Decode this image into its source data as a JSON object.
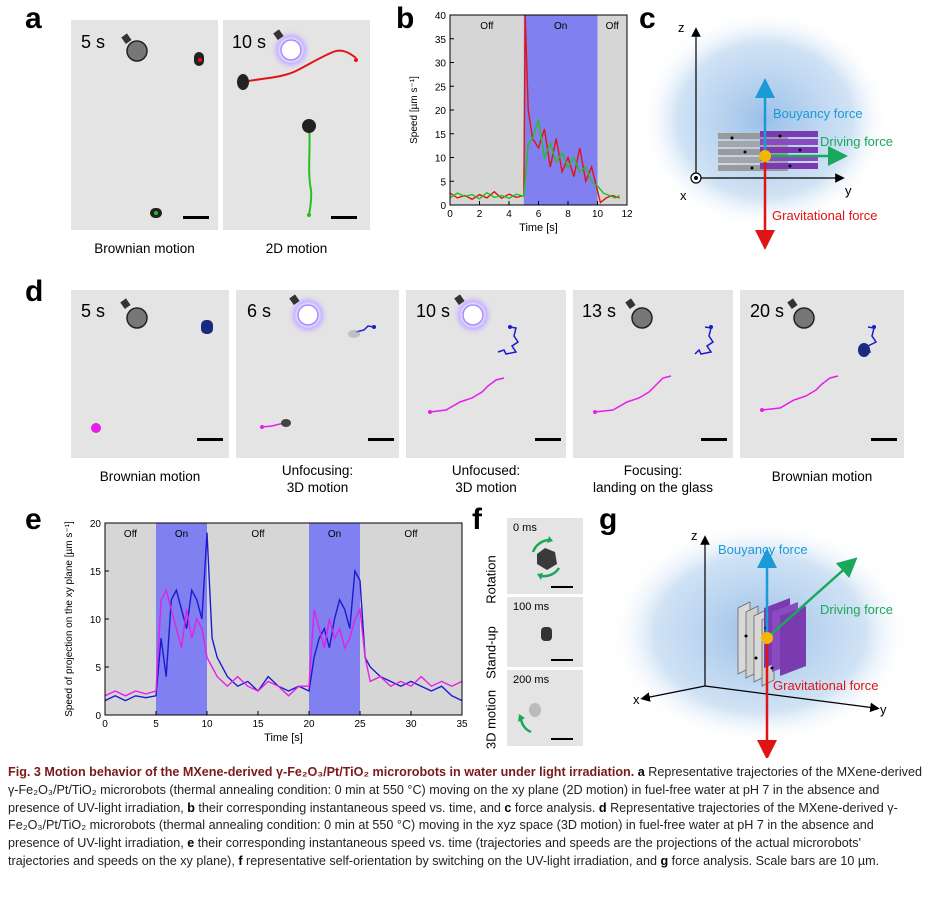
{
  "panel_labels": {
    "a": "a",
    "b": "b",
    "c": "c",
    "d": "d",
    "e": "e",
    "f": "f",
    "g": "g"
  },
  "panel_a": {
    "images": [
      {
        "time": "5 s",
        "caption": "Brownian motion"
      },
      {
        "time": "10 s",
        "caption": "2D motion"
      }
    ]
  },
  "panel_b": {
    "chart_data": {
      "type": "line",
      "xlabel": "Time [s]",
      "ylabel": "Speed [µm s⁻¹]",
      "xlim": [
        0,
        12
      ],
      "ylim": [
        0,
        40
      ],
      "x_ticks": [
        "0",
        "2",
        "4",
        "6",
        "8",
        "10",
        "12"
      ],
      "y_ticks": [
        "0",
        "5",
        "10",
        "15",
        "20",
        "25",
        "30",
        "35",
        "40"
      ],
      "regions": [
        {
          "label": "Off",
          "x0": 0,
          "x1": 5
        },
        {
          "label": "On",
          "x0": 5,
          "x1": 10
        },
        {
          "label": "Off",
          "x0": 10,
          "x1": 12
        }
      ],
      "series": [
        {
          "name": "red",
          "color": "#e01414",
          "x": [
            0,
            0.5,
            1,
            1.5,
            2,
            2.5,
            3,
            3.5,
            4,
            4.5,
            5,
            5.1,
            5.3,
            5.6,
            6,
            6.4,
            6.8,
            7.2,
            7.6,
            8,
            8.4,
            8.8,
            9.2,
            9.6,
            10,
            10.2,
            10.6,
            11,
            11.5
          ],
          "y": [
            2.5,
            1.5,
            2,
            1.2,
            2.2,
            1.5,
            2.8,
            1.4,
            2.3,
            1.6,
            2,
            40,
            20,
            14,
            12,
            16,
            8,
            14,
            7,
            10,
            6,
            12,
            5,
            8,
            3,
            0.5,
            1.5,
            2,
            1.5
          ]
        },
        {
          "name": "green",
          "color": "#22c022",
          "x": [
            0,
            0.5,
            1,
            1.5,
            2,
            2.5,
            3,
            3.5,
            4,
            4.5,
            5,
            5.3,
            5.6,
            6,
            6.4,
            6.8,
            7.2,
            7.6,
            8,
            8.4,
            8.8,
            9.2,
            9.6,
            10,
            10.4,
            10.8,
            11.2,
            11.5
          ],
          "y": [
            1.5,
            2.5,
            1.8,
            2.2,
            1.3,
            2.6,
            1.6,
            2,
            1.4,
            2.3,
            1.8,
            13,
            14,
            18,
            10,
            13,
            9,
            11,
            8,
            10,
            7,
            8,
            5,
            4,
            2.5,
            2,
            1.5,
            2
          ]
        }
      ]
    }
  },
  "panel_c": {
    "axes": {
      "z": "z",
      "y": "y",
      "x": "x"
    },
    "forces": {
      "buoyancy": "Bouyancy force",
      "driving": "Driving force",
      "gravity": "Gravitational force"
    }
  },
  "panel_d": {
    "images": [
      {
        "time": "5 s",
        "caption": "Brownian motion"
      },
      {
        "time": "6 s",
        "caption": "Unfocusing:\n3D motion"
      },
      {
        "time": "10 s",
        "caption": "Unfocused:\n3D motion"
      },
      {
        "time": "13 s",
        "caption": "Focusing:\nlanding on the glass"
      },
      {
        "time": "20 s",
        "caption": "Brownian motion"
      }
    ]
  },
  "panel_e": {
    "chart_data": {
      "type": "line",
      "xlabel": "Time [s]",
      "ylabel": "Speed of projection on the xy plane [µm s⁻¹]",
      "xlim": [
        0,
        35
      ],
      "ylim": [
        0,
        20
      ],
      "x_ticks": [
        "0",
        "5",
        "10",
        "15",
        "20",
        "25",
        "30",
        "35"
      ],
      "y_ticks": [
        "0",
        "5",
        "10",
        "15",
        "20"
      ],
      "regions": [
        {
          "label": "Off",
          "x0": 0,
          "x1": 5
        },
        {
          "label": "On",
          "x0": 5,
          "x1": 10
        },
        {
          "label": "Off",
          "x0": 10,
          "x1": 20
        },
        {
          "label": "On",
          "x0": 20,
          "x1": 25
        },
        {
          "label": "Off",
          "x0": 25,
          "x1": 35
        }
      ],
      "series": [
        {
          "name": "blue",
          "color": "#1a1ad0",
          "x": [
            0,
            1,
            2,
            3,
            4,
            5,
            5.5,
            6,
            6.5,
            7,
            7.5,
            8,
            8.5,
            9,
            9.5,
            10,
            10.5,
            11,
            12,
            13,
            14,
            15,
            16,
            17,
            18,
            19,
            20,
            20.5,
            21,
            21.5,
            22,
            22.5,
            23,
            23.5,
            24,
            24.5,
            25,
            25.5,
            26,
            27,
            28,
            29,
            30,
            31,
            32,
            33,
            34,
            35
          ],
          "y": [
            1.5,
            2,
            1.5,
            2,
            1.8,
            2,
            8,
            4,
            12,
            13,
            11,
            9,
            13,
            12,
            10,
            19,
            8,
            6,
            4,
            3,
            3.5,
            2.5,
            4,
            3,
            2.5,
            3,
            2.5,
            6,
            8,
            9,
            7,
            10,
            12,
            11,
            9,
            15,
            14,
            6,
            5,
            4,
            3.5,
            3,
            3.5,
            3,
            2.5,
            3,
            2,
            1.5
          ]
        },
        {
          "name": "magenta",
          "color": "#e61ee6",
          "x": [
            0,
            1,
            2,
            3,
            4,
            5,
            5.5,
            6,
            6.5,
            7,
            7.5,
            8,
            8.5,
            9,
            9.5,
            10,
            10.5,
            11,
            12,
            13,
            14,
            15,
            16,
            17,
            18,
            19,
            20,
            20.5,
            21,
            21.5,
            22,
            22.5,
            23,
            23.5,
            24,
            24.5,
            25,
            25.5,
            26,
            27,
            28,
            29,
            30,
            31,
            32,
            33,
            34,
            35
          ],
          "y": [
            2,
            2.5,
            2,
            2.5,
            2.2,
            2.5,
            12,
            13,
            11,
            9,
            7,
            11,
            8,
            10,
            9,
            6,
            5,
            4,
            3,
            4,
            3,
            2.5,
            3.5,
            3,
            2,
            3,
            3,
            11,
            9,
            7,
            10,
            8,
            9,
            7,
            8,
            10,
            11,
            6,
            3.5,
            4,
            3,
            3.5,
            3,
            4,
            3,
            3.5,
            3,
            3.5
          ]
        }
      ]
    }
  },
  "panel_f": {
    "images": [
      {
        "time": "0 ms",
        "side": "Rotation"
      },
      {
        "time": "100 ms",
        "side": "Stand-up"
      },
      {
        "time": "200 ms",
        "side": "3D motion"
      }
    ]
  },
  "panel_g": {
    "axes": {
      "z": "z",
      "y": "y",
      "x": "x"
    },
    "forces": {
      "buoyancy": "Bouyancy force",
      "driving": "Driving force",
      "gravity": "Gravitational force"
    }
  },
  "caption": {
    "fig_label": "Fig. 3",
    "title": "Motion behavior of the MXene-derived γ-Fe₂O₃/Pt/TiO₂ microrobots in water under light irradiation.",
    "a_label": "a",
    "a_text": "Representative trajectories of the MXene-derived γ-Fe₂O₃/Pt/TiO₂ microrobots (thermal annealing condition: 0 min at 550 °C) moving on the xy plane (2D motion) in fuel-free water at pH 7 in the absence and presence of UV-light irradiation,",
    "b_label": "b",
    "b_text": "their corresponding instantaneous speed vs. time, and",
    "c_label": "c",
    "c_text": "force analysis.",
    "d_label": "d",
    "d_text": "Representative trajectories of the MXene-derived γ-Fe₂O₃/Pt/TiO₂ microrobots (thermal annealing condition: 0 min at 550 °C) moving in the xyz space (3D motion) in fuel-free water at pH 7 in the absence and presence of UV-light irradiation,",
    "e_label": "e",
    "e_text": "their corresponding instantaneous speed vs. time (trajectories and speeds are the projections of the actual microrobots' trajectories and speeds on the xy plane),",
    "f_label": "f",
    "f_text": "representative self-orientation by switching on the UV-light irradiation, and",
    "g_label": "g",
    "g_text": "force analysis. Scale bars are 10 µm."
  }
}
